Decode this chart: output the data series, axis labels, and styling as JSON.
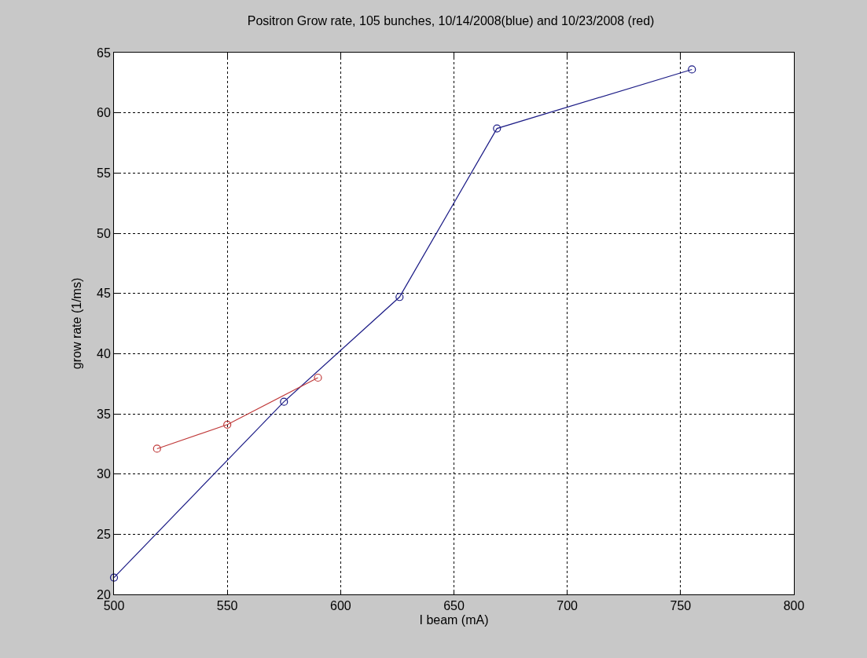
{
  "chart_data": {
    "type": "line",
    "title": "Positron Grow rate, 105 bunches, 10/14/2008(blue) and 10/23/2008 (red)",
    "xlabel": "I beam (mA)",
    "ylabel": "grow rate (1/ms)",
    "series": [
      {
        "color": "#1c1c86",
        "x": [
          500,
          575,
          626,
          669,
          755
        ],
        "values": [
          21.4,
          36.0,
          44.7,
          58.7,
          63.6
        ]
      },
      {
        "color": "#c03a3a",
        "x": [
          519,
          550,
          590
        ],
        "values": [
          32.1,
          34.1,
          38.0
        ]
      }
    ],
    "xlim": [
      500,
      800
    ],
    "xticks": [
      500,
      550,
      600,
      650,
      700,
      750,
      800
    ],
    "ylim": [
      20,
      65
    ],
    "yticks": [
      20,
      25,
      30,
      35,
      40,
      45,
      50,
      55,
      60,
      65
    ],
    "grid": true,
    "marker": "circle",
    "line_style": "solid"
  }
}
